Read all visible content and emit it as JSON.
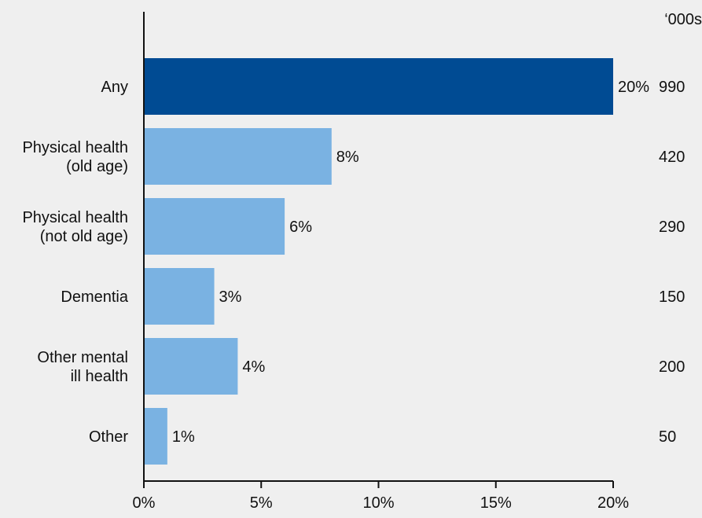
{
  "chart_data": {
    "type": "bar",
    "orientation": "horizontal",
    "title": "",
    "xlabel": "",
    "ylabel": "",
    "xlim": [
      0,
      20
    ],
    "x_ticks": [
      0,
      5,
      10,
      15,
      20
    ],
    "x_tick_labels": [
      "0%",
      "5%",
      "10%",
      "15%",
      "20%"
    ],
    "grid": false,
    "categories": [
      [
        "Any"
      ],
      [
        "Physical health",
        "(old age)"
      ],
      [
        "Physical health",
        "(not old age)"
      ],
      [
        "Dementia"
      ],
      [
        "Other mental",
        "ill health"
      ],
      [
        "Other"
      ]
    ],
    "values": [
      20,
      8,
      6,
      3,
      4,
      1
    ],
    "value_labels": [
      "20%",
      "8%",
      "6%",
      "3%",
      "4%",
      "1%"
    ],
    "counts_unit": "‘000s",
    "counts": [
      "990",
      "420",
      "290",
      "150",
      "200",
      "50"
    ],
    "colors": {
      "highlight": "#004b93",
      "bar": "#7ab2e2",
      "axis": "#111111"
    },
    "highlight_index": 0
  }
}
